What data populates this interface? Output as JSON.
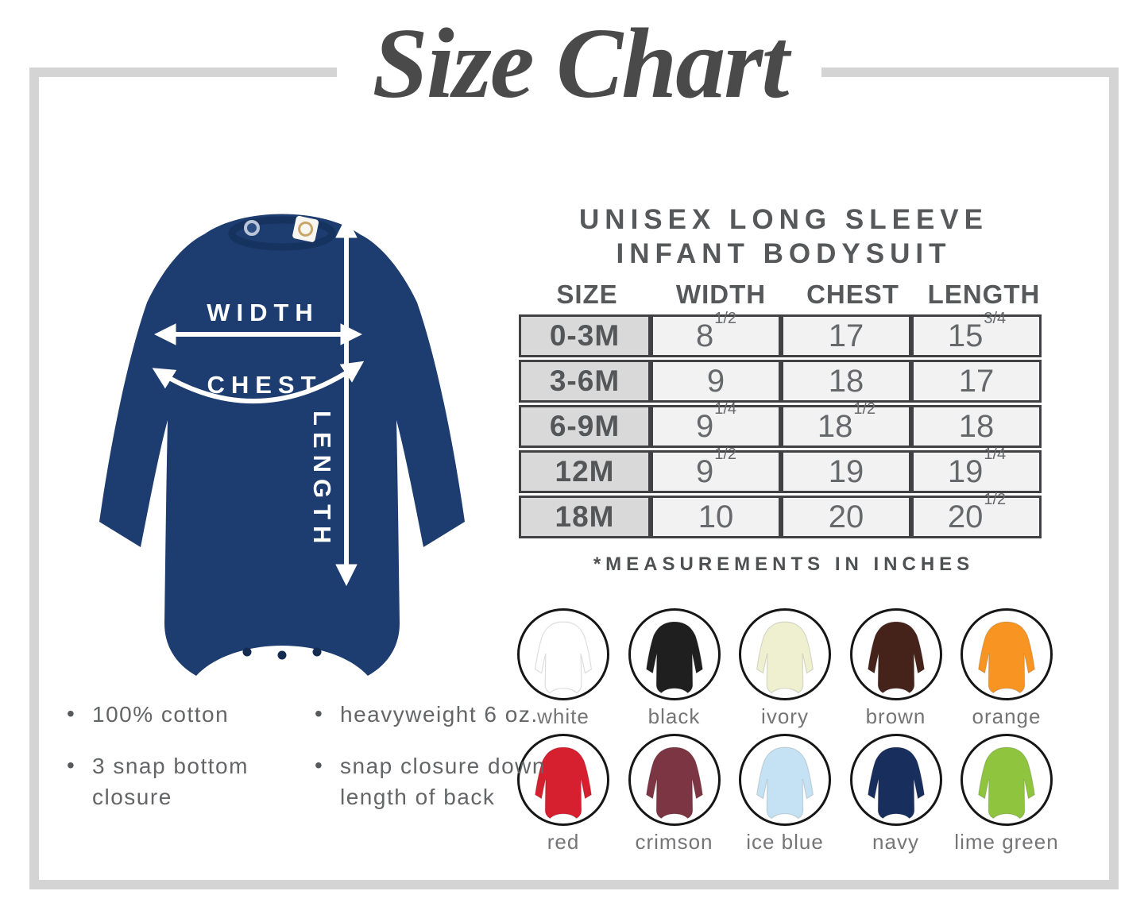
{
  "title": "Size Chart",
  "figure": {
    "garment_color": "#1d3c6f",
    "labels": {
      "width": "WIDTH",
      "chest": "CHEST",
      "length": "LENGTH"
    }
  },
  "product": {
    "heading_line1": "UNISEX LONG SLEEVE",
    "heading_line2": "INFANT BODYSUIT"
  },
  "size_table": {
    "columns": [
      "SIZE",
      "WIDTH",
      "CHEST",
      "LENGTH"
    ],
    "rows": [
      {
        "size": "0-3M",
        "width": [
          "8",
          "1/2"
        ],
        "chest": [
          "17",
          ""
        ],
        "length": [
          "15",
          "3/4"
        ]
      },
      {
        "size": "3-6M",
        "width": [
          "9",
          ""
        ],
        "chest": [
          "18",
          ""
        ],
        "length": [
          "17",
          ""
        ]
      },
      {
        "size": "6-9M",
        "width": [
          "9",
          "1/4"
        ],
        "chest": [
          "18",
          "1/2"
        ],
        "length": [
          "18",
          ""
        ]
      },
      {
        "size": "12M",
        "width": [
          "9",
          "1/2"
        ],
        "chest": [
          "19",
          ""
        ],
        "length": [
          "19",
          "1/4"
        ]
      },
      {
        "size": "18M",
        "width": [
          "10",
          ""
        ],
        "chest": [
          "20",
          ""
        ],
        "length": [
          "20",
          "1/2"
        ]
      }
    ],
    "footnote": "*MEASUREMENTS IN INCHES"
  },
  "features": {
    "column1": [
      "100% cotton",
      "3 snap bottom closure"
    ],
    "column2": [
      "heavyweight 6 oz.",
      "snap closure down length of back"
    ]
  },
  "colors": {
    "rows": [
      [
        {
          "label": "white",
          "hex": "#ffffff"
        },
        {
          "label": "black",
          "hex": "#1f1f1f"
        },
        {
          "label": "ivory",
          "hex": "#eef0d0"
        },
        {
          "label": "brown",
          "hex": "#46231a"
        },
        {
          "label": "orange",
          "hex": "#f89522"
        }
      ],
      [
        {
          "label": "red",
          "hex": "#d6202f"
        },
        {
          "label": "crimson",
          "hex": "#7c3543"
        },
        {
          "label": "ice blue",
          "hex": "#c5e2f4"
        },
        {
          "label": "navy",
          "hex": "#182f5e"
        },
        {
          "label": "lime green",
          "hex": "#8fc43f"
        }
      ]
    ]
  },
  "theme": {
    "frame_gray": "#d4d4d4",
    "title_gray": "#4a4a4a",
    "heading_gray": "#57585a",
    "table_border": "#414042",
    "size_cell_bg": "#d9d9d9",
    "value_cell_bg": "#f2f2f2"
  }
}
